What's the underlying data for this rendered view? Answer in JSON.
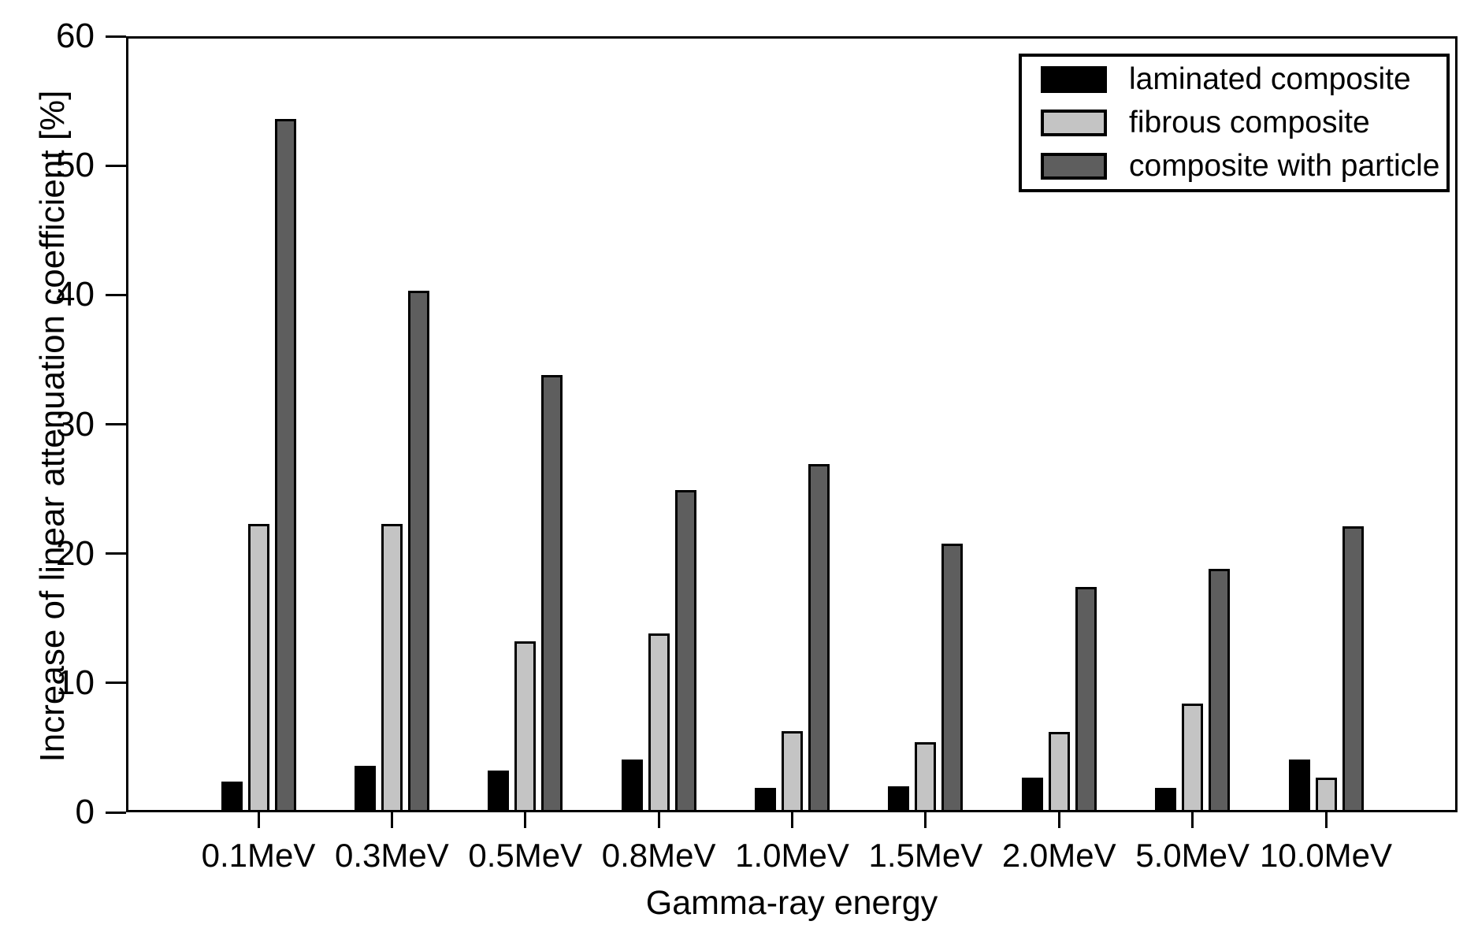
{
  "chart_data": {
    "type": "bar",
    "title": "",
    "xlabel": "Gamma-ray energy",
    "ylabel": "Increase of linear attenuation coefficient [%]",
    "categories": [
      "0.1MeV",
      "0.3MeV",
      "0.5MeV",
      "0.8MeV",
      "1.0MeV",
      "1.5MeV",
      "2.0MeV",
      "5.0MeV",
      "10.0MeV"
    ],
    "series": [
      {
        "name": "laminated composite",
        "color": "#000000",
        "values": [
          2.4,
          3.6,
          3.2,
          4.1,
          1.9,
          2.0,
          2.7,
          1.9,
          4.1
        ]
      },
      {
        "name": "fibrous composite",
        "color": "#c4c4c4",
        "values": [
          22.3,
          22.3,
          13.2,
          13.8,
          6.3,
          5.4,
          6.2,
          8.4,
          2.7
        ]
      },
      {
        "name": "composite with particle",
        "color": "#5e5e5e",
        "values": [
          53.6,
          40.3,
          33.8,
          24.9,
          26.9,
          20.8,
          17.4,
          18.8,
          22.1
        ]
      }
    ],
    "ylim": [
      0,
      60
    ],
    "ytick_interval": 10,
    "yticks": [
      0,
      10,
      20,
      30,
      40,
      50,
      60
    ],
    "grid": false,
    "legend_position": "top-right",
    "bar_border_color": "#000000",
    "axis_color": "#000000",
    "background_color": "#ffffff"
  }
}
